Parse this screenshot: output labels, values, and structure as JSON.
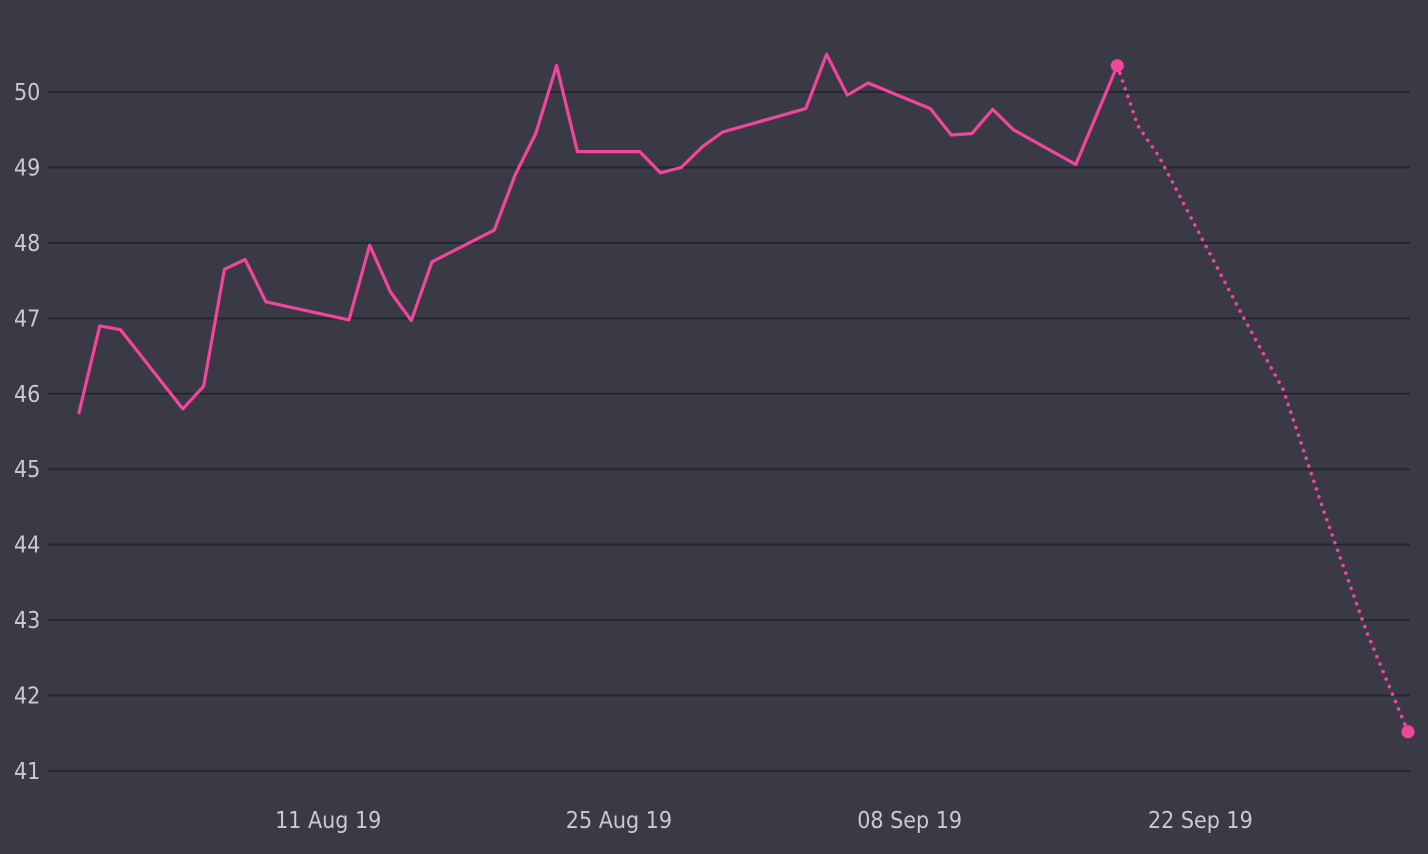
{
  "chart_data": {
    "type": "line",
    "title": "",
    "xlabel": "",
    "ylabel": "",
    "x_axis": {
      "ticks": [
        {
          "date": "2019-08-11",
          "label": "11 Aug 19"
        },
        {
          "date": "2019-08-25",
          "label": "25 Aug 19"
        },
        {
          "date": "2019-09-08",
          "label": "08 Sep 19"
        },
        {
          "date": "2019-09-22",
          "label": "22 Sep 19"
        }
      ],
      "range": [
        "2019-07-30",
        "2019-10-03"
      ]
    },
    "y_axis": {
      "ticks": [
        41,
        42,
        43,
        44,
        45,
        46,
        47,
        48,
        49,
        50
      ],
      "range": [
        41,
        51
      ],
      "grid": true
    },
    "colors": {
      "background": "#3a3a46",
      "series": "#f2459e",
      "grid": "#262630",
      "tick_text": "#c9c9d3"
    },
    "series": [
      {
        "style": "solid",
        "points": [
          {
            "x": "2019-07-30",
            "y": 45.75
          },
          {
            "x": "2019-07-31",
            "y": 46.9
          },
          {
            "x": "2019-08-01",
            "y": 46.85
          },
          {
            "x": "2019-08-04",
            "y": 45.8
          },
          {
            "x": "2019-08-05",
            "y": 46.1
          },
          {
            "x": "2019-08-06",
            "y": 47.65
          },
          {
            "x": "2019-08-07",
            "y": 47.78
          },
          {
            "x": "2019-08-08",
            "y": 47.22
          },
          {
            "x": "2019-08-12",
            "y": 46.98
          },
          {
            "x": "2019-08-13",
            "y": 47.97
          },
          {
            "x": "2019-08-14",
            "y": 47.35
          },
          {
            "x": "2019-08-15",
            "y": 46.97
          },
          {
            "x": "2019-08-16",
            "y": 47.75
          },
          {
            "x": "2019-08-19",
            "y": 48.17
          },
          {
            "x": "2019-08-20",
            "y": 48.9
          },
          {
            "x": "2019-08-21",
            "y": 49.45
          },
          {
            "x": "2019-08-22",
            "y": 50.35
          },
          {
            "x": "2019-08-23",
            "y": 49.21
          },
          {
            "x": "2019-08-26",
            "y": 49.21
          },
          {
            "x": "2019-08-27",
            "y": 48.93
          },
          {
            "x": "2019-08-28",
            "y": 49.0
          },
          {
            "x": "2019-08-29",
            "y": 49.27
          },
          {
            "x": "2019-08-30",
            "y": 49.47
          },
          {
            "x": "2019-09-03",
            "y": 49.78
          },
          {
            "x": "2019-09-04",
            "y": 50.5
          },
          {
            "x": "2019-09-05",
            "y": 49.96
          },
          {
            "x": "2019-09-06",
            "y": 50.12
          },
          {
            "x": "2019-09-09",
            "y": 49.78
          },
          {
            "x": "2019-09-10",
            "y": 49.43
          },
          {
            "x": "2019-09-11",
            "y": 49.45
          },
          {
            "x": "2019-09-12",
            "y": 49.77
          },
          {
            "x": "2019-09-13",
            "y": 49.5
          },
          {
            "x": "2019-09-16",
            "y": 49.04
          },
          {
            "x": "2019-09-18",
            "y": 50.35
          }
        ]
      },
      {
        "style": "dotted",
        "points": [
          {
            "x": "2019-09-18",
            "y": 50.35
          },
          {
            "x": "2019-09-19",
            "y": 49.55
          },
          {
            "x": "2019-09-20",
            "y": 49.15
          },
          {
            "x": "2019-09-22",
            "y": 48.1
          },
          {
            "x": "2019-09-24",
            "y": 47.05
          },
          {
            "x": "2019-09-26",
            "y": 46.05
          },
          {
            "x": "2019-09-28",
            "y": 44.4
          },
          {
            "x": "2019-09-30",
            "y": 42.85
          },
          {
            "x": "2019-10-02",
            "y": 41.52
          }
        ],
        "end_markers": true
      }
    ]
  }
}
